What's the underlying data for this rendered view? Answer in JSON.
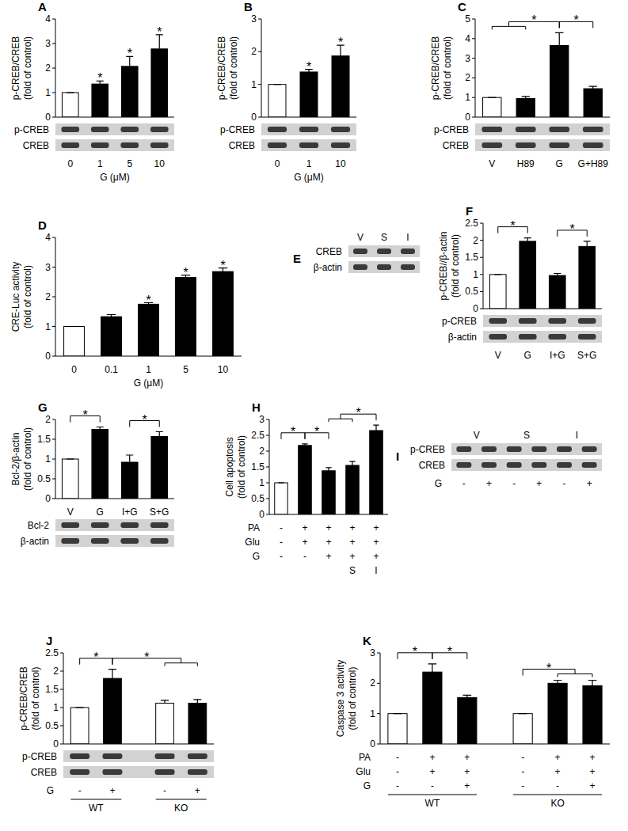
{
  "chart_data": [
    {
      "panel": "A",
      "type": "bar",
      "y_label": [
        "p-CREB/CREB",
        "(fold of control)"
      ],
      "x_label": "G (μM)",
      "categories": [
        "0",
        "1",
        "5",
        "10"
      ],
      "values": [
        1,
        1.35,
        2.07,
        2.78
      ],
      "errors": [
        0,
        0.12,
        0.4,
        0.58
      ],
      "colors": [
        "#ffffff",
        "#000000",
        "#000000",
        "#000000"
      ],
      "ylim": [
        0,
        4
      ],
      "yticks": [
        0,
        1,
        2,
        3,
        4
      ],
      "blot_rows": [
        "p-CREB",
        "CREB"
      ],
      "significance": [
        {
          "label": "*",
          "bars": [
            1
          ]
        },
        {
          "label": "*",
          "bars": [
            2
          ]
        },
        {
          "label": "*",
          "bars": [
            3
          ]
        }
      ]
    },
    {
      "panel": "B",
      "type": "bar",
      "y_label": [
        "p-CREB/CREB",
        "(fold of control)"
      ],
      "x_label": "G (μM)",
      "categories": [
        "0",
        "1",
        "10"
      ],
      "values": [
        1,
        1.38,
        1.87
      ],
      "errors": [
        0,
        0.08,
        0.33
      ],
      "colors": [
        "#ffffff",
        "#000000",
        "#000000"
      ],
      "ylim": [
        0,
        3
      ],
      "yticks": [
        0,
        1,
        2,
        3
      ],
      "blot_rows": [
        "p-CREB",
        "CREB"
      ],
      "significance": [
        {
          "label": "*",
          "bars": [
            1
          ]
        },
        {
          "label": "*",
          "bars": [
            2
          ]
        }
      ]
    },
    {
      "panel": "C",
      "type": "bar",
      "y_label": [
        "p-CREB/CREB",
        "(fold of control)"
      ],
      "categories": [
        "V",
        "H89",
        "G",
        "G+H89"
      ],
      "values": [
        1,
        0.95,
        3.65,
        1.45
      ],
      "errors": [
        0,
        0.1,
        0.65,
        0.12
      ],
      "colors": [
        "#ffffff",
        "#000000",
        "#000000",
        "#000000"
      ],
      "ylim": [
        0,
        5
      ],
      "yticks": [
        0,
        1,
        2,
        3,
        4,
        5
      ],
      "blot_rows": [
        "p-CREB",
        "CREB"
      ],
      "significance": [
        {
          "label": "*",
          "left": [
            0,
            1
          ],
          "right": [
            2
          ]
        },
        {
          "label": "*",
          "left": [
            2
          ],
          "right": [
            3
          ]
        }
      ]
    },
    {
      "panel": "D",
      "type": "bar",
      "y_label": [
        "CRE-Luc activity",
        "(fold of control)"
      ],
      "x_label": "G (μM)",
      "categories": [
        "0",
        "0.1",
        "1",
        "5",
        "10"
      ],
      "values": [
        1,
        1.33,
        1.75,
        2.65,
        2.85
      ],
      "errors": [
        0,
        0.07,
        0.05,
        0.08,
        0.12
      ],
      "colors": [
        "#ffffff",
        "#000000",
        "#000000",
        "#000000",
        "#000000"
      ],
      "ylim": [
        0,
        4
      ],
      "yticks": [
        0,
        1,
        2,
        3,
        4
      ],
      "significance": [
        {
          "label": "*",
          "bars": [
            2
          ]
        },
        {
          "label": "*",
          "bars": [
            3
          ]
        },
        {
          "label": "*",
          "bars": [
            4
          ]
        }
      ]
    },
    {
      "panel": "E",
      "type": "blot",
      "lanes": [
        "V",
        "S",
        "I"
      ],
      "blot_rows": [
        "CREB",
        "β-actin"
      ]
    },
    {
      "panel": "F",
      "type": "bar",
      "y_label": [
        "p-CREB//β-actin",
        "(fold of control)"
      ],
      "categories": [
        "V",
        "G",
        "I+G",
        "S+G"
      ],
      "values": [
        1,
        1.97,
        0.97,
        1.82
      ],
      "errors": [
        0,
        0.1,
        0.06,
        0.15
      ],
      "colors": [
        "#ffffff",
        "#000000",
        "#000000",
        "#000000"
      ],
      "ylim": [
        0,
        2.5
      ],
      "yticks": [
        0,
        0.5,
        1,
        1.5,
        2,
        2.5
      ],
      "blot_rows": [
        "p-CREB",
        "β-actin"
      ],
      "significance": [
        {
          "label": "*",
          "left": [
            0
          ],
          "right": [
            1
          ]
        },
        {
          "label": "*",
          "left": [
            2
          ],
          "right": [
            3
          ]
        }
      ]
    },
    {
      "panel": "G",
      "type": "bar",
      "y_label": [
        "Bcl-2/β-actin",
        "(fold of control)"
      ],
      "categories": [
        "V",
        "G",
        "I+G",
        "S+G"
      ],
      "values": [
        1,
        1.75,
        0.92,
        1.57
      ],
      "errors": [
        0,
        0.06,
        0.18,
        0.12
      ],
      "colors": [
        "#ffffff",
        "#000000",
        "#000000",
        "#000000"
      ],
      "ylim": [
        0,
        2
      ],
      "yticks": [
        0,
        0.5,
        1,
        1.5,
        2
      ],
      "blot_rows": [
        "Bcl-2",
        "β-actin"
      ],
      "significance": [
        {
          "label": "*",
          "left": [
            0
          ],
          "right": [
            1
          ]
        },
        {
          "label": "*",
          "left": [
            2
          ],
          "right": [
            3
          ]
        }
      ]
    },
    {
      "panel": "H",
      "type": "bar",
      "y_label": [
        "Cell apoptosis",
        "(fold of control)"
      ],
      "categories": [
        null,
        null,
        null,
        null,
        null
      ],
      "values": [
        1,
        2.18,
        1.38,
        1.55,
        2.65
      ],
      "errors": [
        0,
        0.05,
        0.1,
        0.12,
        0.17
      ],
      "colors": [
        "#ffffff",
        "#000000",
        "#000000",
        "#000000",
        "#000000"
      ],
      "ylim": [
        0,
        3
      ],
      "yticks": [
        0,
        0.5,
        1,
        1.5,
        2,
        2.5,
        3
      ],
      "conditions": [
        {
          "label": "PA",
          "values": [
            "-",
            "+",
            "+",
            "+",
            "+"
          ]
        },
        {
          "label": "Glu",
          "values": [
            "-",
            "+",
            "+",
            "+",
            "+"
          ]
        },
        {
          "label": "G",
          "values": [
            "-",
            "-",
            "+",
            "+",
            "+"
          ]
        },
        {
          "label": null,
          "values": [
            null,
            null,
            null,
            "S",
            "I"
          ]
        }
      ],
      "significance": [
        {
          "label": "*",
          "left": [
            0
          ],
          "right": [
            1
          ]
        },
        {
          "label": "*",
          "left": [
            1
          ],
          "right": [
            2
          ]
        },
        {
          "label": "*",
          "left": [
            2,
            3
          ],
          "right": [
            4
          ]
        }
      ]
    },
    {
      "panel": "I",
      "type": "blot",
      "lanes": [
        "V",
        "S",
        "I"
      ],
      "blot_rows": [
        "p-CREB",
        "CREB"
      ],
      "conditions": [
        {
          "label": "G",
          "values": [
            "-",
            "+",
            "-",
            "+",
            "-",
            "+"
          ]
        }
      ]
    },
    {
      "panel": "J",
      "type": "bar",
      "y_label": [
        "p-CREB/CREB",
        "(fold of control)"
      ],
      "categories": [
        null,
        null,
        null,
        null
      ],
      "values": [
        1,
        1.8,
        1.12,
        1.12
      ],
      "errors": [
        0,
        0.25,
        0.08,
        0.1
      ],
      "colors": [
        "#ffffff",
        "#000000",
        "#ffffff",
        "#000000"
      ],
      "ylim": [
        0,
        2.5
      ],
      "yticks": [
        0,
        0.5,
        1,
        1.5,
        2,
        2.5
      ],
      "blot_rows": [
        "p-CREB",
        "CREB"
      ],
      "conditions": [
        {
          "label": "G",
          "values": [
            "-",
            "+",
            "-",
            "+"
          ]
        }
      ],
      "groups": [
        {
          "label": "WT",
          "bars": [
            0,
            1
          ]
        },
        {
          "label": "KO",
          "bars": [
            2,
            3
          ]
        }
      ],
      "significance": [
        {
          "label": "*",
          "left": [
            0
          ],
          "right": [
            1
          ]
        },
        {
          "label": "*",
          "left": [
            1
          ],
          "right": [
            2,
            3
          ]
        }
      ]
    },
    {
      "panel": "K",
      "type": "bar",
      "y_label": [
        "Caspase 3 activity",
        "(fold of control)"
      ],
      "categories": [
        null,
        null,
        null,
        null,
        null,
        null
      ],
      "values": [
        1,
        2.37,
        1.53,
        1,
        2,
        1.92
      ],
      "errors": [
        0,
        0.27,
        0.08,
        0,
        0.1,
        0.18
      ],
      "colors": [
        "#ffffff",
        "#000000",
        "#000000",
        "#ffffff",
        "#000000",
        "#000000"
      ],
      "ylim": [
        0,
        3
      ],
      "yticks": [
        0,
        1,
        2,
        3
      ],
      "conditions": [
        {
          "label": "PA",
          "values": [
            "-",
            "+",
            "+",
            "-",
            "+",
            "+"
          ]
        },
        {
          "label": "Glu",
          "values": [
            "-",
            "+",
            "+",
            "-",
            "+",
            "+"
          ]
        },
        {
          "label": "G",
          "values": [
            "-",
            "-",
            "+",
            "-",
            "-",
            "+"
          ]
        }
      ],
      "groups": [
        {
          "label": "WT",
          "bars": [
            0,
            1,
            2
          ]
        },
        {
          "label": "KO",
          "bars": [
            3,
            4,
            5
          ]
        }
      ],
      "significance": [
        {
          "label": "*",
          "left": [
            0
          ],
          "right": [
            1
          ]
        },
        {
          "label": "*",
          "left": [
            1
          ],
          "right": [
            2
          ]
        },
        {
          "label": "*",
          "left": [
            3
          ],
          "right": [
            4,
            5
          ]
        }
      ]
    }
  ]
}
